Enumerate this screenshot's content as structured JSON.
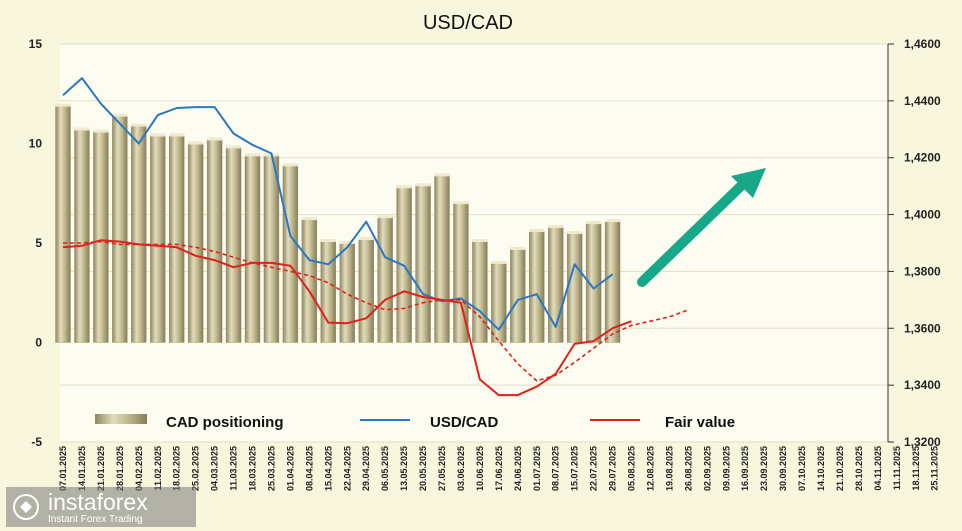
{
  "chart_data": {
    "type": "bar+line",
    "title": "USD/CAD",
    "left_axis": {
      "range": [
        -5,
        15
      ],
      "ticks": [
        "-5",
        "0",
        "5",
        "10",
        "15"
      ]
    },
    "right_axis": {
      "range": [
        1.32,
        1.46
      ],
      "ticks": [
        "1,3200",
        "1,3400",
        "1,3600",
        "1,3800",
        "1,4000",
        "1,4200",
        "1,4400",
        "1,4600"
      ]
    },
    "x_labels": [
      "07.01.2025",
      "14.01.2025",
      "21.01.2025",
      "28.01.2025",
      "04.02.2025",
      "11.02.2025",
      "18.02.2025",
      "25.02.2025",
      "04.03.2025",
      "11.03.2025",
      "18.03.2025",
      "25.03.2025",
      "01.04.2025",
      "08.04.2025",
      "15.04.2025",
      "22.04.2025",
      "29.04.2025",
      "06.05.2025",
      "13.05.2025",
      "20.05.2025",
      "27.05.2025",
      "03.06.2025",
      "10.06.2025",
      "17.06.2025",
      "24.06.2025",
      "01.07.2025",
      "08.07.2025",
      "15.07.2025",
      "22.07.2025",
      "29.07.2025",
      "05.08.2025",
      "12.08.2025",
      "19.08.2025",
      "26.08.2025",
      "02.09.2025",
      "09.09.2025",
      "16.09.2025",
      "23.09.2025",
      "30.09.2025",
      "07.10.2025",
      "14.10.2025",
      "21.10.2025",
      "28.10.2025",
      "04.11.2025",
      "11.11.2025",
      "18.11.2025",
      "25.11.2025"
    ],
    "series": [
      {
        "name": "CAD positioning",
        "type": "bar",
        "axis": "left",
        "color": "#b5ad83",
        "values": [
          11.9,
          10.7,
          10.6,
          11.4,
          10.9,
          10.4,
          10.4,
          10.0,
          10.2,
          9.8,
          9.4,
          9.4,
          8.9,
          6.2,
          5.1,
          5.0,
          5.2,
          6.3,
          7.8,
          7.9,
          8.4,
          7.0,
          5.1,
          4.0,
          4.7,
          5.6,
          5.8,
          5.5,
          6.0,
          6.1
        ]
      },
      {
        "name": "USD/CAD",
        "type": "line",
        "axis": "right",
        "color": "#2a78c0",
        "values": [
          1.442,
          1.448,
          1.439,
          1.432,
          1.425,
          1.435,
          1.4375,
          1.4378,
          1.4378,
          1.4285,
          1.4245,
          1.4215,
          1.3925,
          1.384,
          1.3825,
          1.3885,
          1.3975,
          1.385,
          1.382,
          1.372,
          1.3695,
          1.3705,
          1.366,
          1.3595,
          1.37,
          1.372,
          1.3605,
          1.3825,
          1.374,
          1.379
        ]
      },
      {
        "name": "Fair value",
        "type": "line",
        "axis": "right",
        "color": "#e0211b",
        "values": [
          1.3885,
          1.389,
          1.391,
          1.3905,
          1.3895,
          1.389,
          1.3885,
          1.3855,
          1.384,
          1.3815,
          1.383,
          1.383,
          1.382,
          1.373,
          1.362,
          1.3618,
          1.3635,
          1.37,
          1.373,
          1.371,
          1.37,
          1.369,
          1.342,
          1.3365,
          1.3365,
          1.3395,
          1.344,
          1.3545,
          1.3555,
          1.36,
          1.3625
        ]
      },
      {
        "name": "Fair value forecast",
        "type": "line",
        "dashed": true,
        "axis": "right",
        "color": "#e0211b",
        "values": [
          1.39,
          1.39,
          1.3905,
          1.3895,
          1.3895,
          1.3895,
          1.3895,
          1.3885,
          1.387,
          1.385,
          1.383,
          1.3815,
          1.38,
          1.3785,
          1.376,
          1.372,
          1.369,
          1.3665,
          1.367,
          1.369,
          1.37,
          1.37,
          1.364,
          1.3555,
          1.3475,
          1.3415,
          1.3435,
          1.348,
          1.353,
          1.358,
          1.361,
          1.3625,
          1.364,
          1.3665
        ]
      }
    ],
    "legend": {
      "placement": "bottom"
    },
    "arrow": {
      "color": "#17a88a",
      "direction": "up-right"
    }
  },
  "branding": {
    "name": "instaforex",
    "tagline": "Instant Forex Trading"
  }
}
